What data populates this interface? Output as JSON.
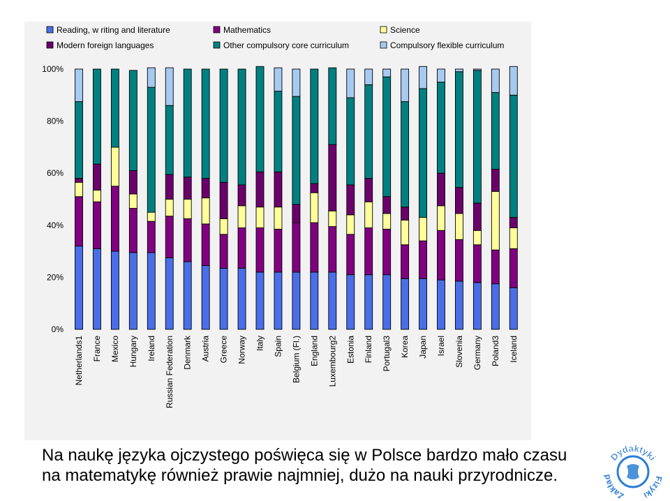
{
  "caption": {
    "line1": "Na naukę języka ojczystego poświęca się w Polsce bardzo mało czasu",
    "line2": "na matematykę również prawie najmniej, dużo na nauki przyrodnicze."
  },
  "logo": {
    "text_top": "Dydaktyki",
    "text_left": "Zakład",
    "text_right": "Fizyki"
  },
  "chart_data": {
    "type": "bar",
    "stacked": true,
    "percent_stacked": true,
    "categories": [
      "Netherlands1",
      "France",
      "Mexico",
      "Hungary",
      "Ireland",
      "Russian Federation",
      "Denmark",
      "Austria",
      "Greece",
      "Norway",
      "Italy",
      "Spain",
      "Belgium (Fl.)",
      "England",
      "Luxembourg2",
      "Estonia",
      "Finland",
      "Portugal3",
      "Korea",
      "Japan",
      "Israel",
      "Slovenia",
      "Germany",
      "Poland3",
      "Iceland"
    ],
    "yticks": [
      "0%",
      "20%",
      "40%",
      "60%",
      "80%",
      "100%"
    ],
    "ylim": [
      0,
      100
    ],
    "grid": false,
    "legend_position": "top",
    "series": [
      {
        "name": "Reading, w riting and literature",
        "color": "#4a6ee8",
        "values": [
          32,
          31,
          30,
          29.5,
          29.5,
          27.5,
          26,
          24.5,
          23.5,
          23.5,
          22,
          22,
          22,
          22,
          22,
          21,
          21,
          21,
          19.5,
          19.5,
          19,
          18.5,
          18,
          17.5,
          16
        ]
      },
      {
        "name": "Mathematics",
        "color": "#800080",
        "values": [
          19,
          18,
          25,
          17,
          12,
          16,
          16.5,
          16,
          13,
          15.5,
          17,
          16.5,
          19,
          19,
          17.5,
          15.5,
          18,
          17.5,
          13,
          14.5,
          19,
          16,
          14.5,
          13,
          15
        ]
      },
      {
        "name": "Science",
        "color": "#ffff99",
        "values": [
          5.5,
          4.5,
          15,
          5.5,
          3.5,
          6.5,
          7.5,
          10,
          6,
          8.5,
          8,
          8.5,
          0,
          11.5,
          6,
          7.5,
          10,
          6,
          9.5,
          9,
          9.5,
          10,
          5.5,
          22.5,
          8
        ]
      },
      {
        "name": "Modern foreign languages",
        "color": "#6b006b",
        "values": [
          1.5,
          10,
          0,
          9,
          0,
          9.5,
          8.5,
          7.5,
          14,
          8,
          13.5,
          13.5,
          7,
          3.5,
          25.5,
          11.5,
          9,
          6.5,
          5,
          0,
          12.5,
          10,
          10.5,
          8.5,
          4
        ]
      },
      {
        "name": "Other compulsory core curriculum",
        "color": "#008080",
        "values": [
          29.5,
          36.5,
          30,
          38.5,
          48,
          26.5,
          41.5,
          42,
          43.5,
          44.5,
          40.5,
          31,
          41.5,
          44,
          29.5,
          33.5,
          36,
          46,
          40.5,
          49.5,
          35,
          44.5,
          51,
          29.5,
          47
        ]
      },
      {
        "name": "Compulsory flexible curriculum",
        "color": "#a6caf0",
        "values": [
          12.5,
          0,
          0,
          0,
          7.5,
          14.5,
          0,
          0,
          0,
          0,
          0,
          9,
          10.5,
          0,
          0,
          11,
          6,
          3,
          12.5,
          8.5,
          5,
          1,
          0.5,
          9,
          11
        ]
      }
    ]
  }
}
